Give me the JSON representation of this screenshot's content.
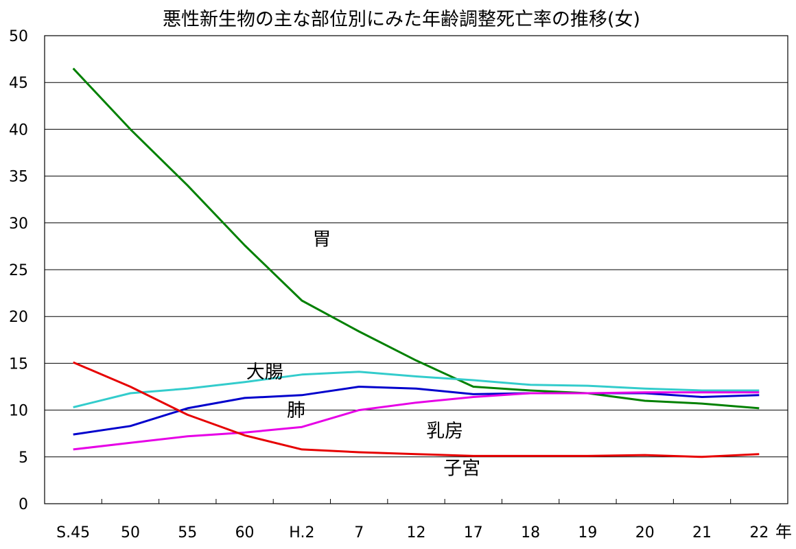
{
  "chart_data": {
    "type": "line",
    "title": "悪性新生物の主な部位別にみた年齢調整死亡率の推移(女)",
    "x_unit": "年",
    "categories": [
      "S.45",
      "50",
      "55",
      "60",
      "H.2",
      "7",
      "12",
      "17",
      "18",
      "19",
      "20",
      "21",
      "22"
    ],
    "ylim": [
      0,
      50
    ],
    "yticks": [
      0,
      5,
      10,
      15,
      20,
      25,
      30,
      35,
      40,
      45,
      50
    ],
    "grid": true,
    "legend": "none",
    "series": [
      {
        "name": "胃",
        "color": "#008000",
        "values": [
          46.5,
          40.0,
          34.0,
          27.6,
          21.7,
          18.4,
          15.3,
          12.5,
          12.1,
          11.8,
          11.0,
          10.7,
          10.2
        ]
      },
      {
        "name": "大腸",
        "color": "#33CCCC",
        "values": [
          10.3,
          11.8,
          12.3,
          13.0,
          13.8,
          14.1,
          13.6,
          13.2,
          12.7,
          12.6,
          12.3,
          12.1,
          12.1
        ]
      },
      {
        "name": "肺",
        "color": "#0000CC",
        "values": [
          7.4,
          8.3,
          10.2,
          11.3,
          11.6,
          12.5,
          12.3,
          11.7,
          11.8,
          11.8,
          11.8,
          11.4,
          11.6
        ]
      },
      {
        "name": "乳房",
        "color": "#E600E6",
        "values": [
          5.8,
          6.5,
          7.2,
          7.6,
          8.2,
          10.0,
          10.8,
          11.4,
          11.8,
          11.8,
          11.9,
          11.9,
          11.9
        ]
      },
      {
        "name": "子宮",
        "color": "#E60000",
        "values": [
          15.1,
          12.5,
          9.5,
          7.3,
          5.8,
          5.5,
          5.3,
          5.1,
          5.1,
          5.1,
          5.2,
          5.0,
          5.3
        ]
      }
    ]
  }
}
